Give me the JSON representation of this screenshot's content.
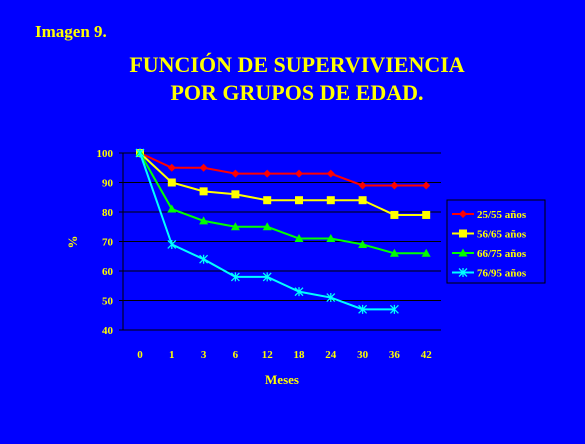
{
  "slide": {
    "caption": "Imagen 9.",
    "title_line1": "FUNCIÓN DE SUPERVIVIENCIA",
    "title_line2": "POR GRUPOS DE EDAD."
  },
  "chart_data": {
    "type": "line",
    "categories": [
      "0",
      "1",
      "3",
      "6",
      "12",
      "18",
      "24",
      "30",
      "36",
      "42"
    ],
    "xlabel": "Meses",
    "ylabel": "%",
    "ylim": [
      40,
      100
    ],
    "yticks": [
      100,
      90,
      80,
      70,
      60,
      50,
      40
    ],
    "grid": "horizontal",
    "legend_position": "right",
    "series": [
      {
        "name": "25/55 años",
        "color": "#ff0000",
        "marker": "diamond",
        "values": [
          100,
          95,
          95,
          93,
          93,
          93,
          93,
          89,
          89,
          89
        ]
      },
      {
        "name": "56/65 años",
        "color": "#ffff00",
        "marker": "square",
        "values": [
          100,
          90,
          87,
          86,
          84,
          84,
          84,
          84,
          79,
          79
        ]
      },
      {
        "name": "66/75 años",
        "color": "#00ff00",
        "marker": "triangle",
        "values": [
          100,
          81,
          77,
          75,
          75,
          71,
          71,
          69,
          66,
          66
        ]
      },
      {
        "name": "76/95 años",
        "color": "#00ffff",
        "marker": "star",
        "values": [
          100,
          69,
          64,
          58,
          58,
          53,
          51,
          47,
          47,
          null
        ]
      }
    ]
  }
}
